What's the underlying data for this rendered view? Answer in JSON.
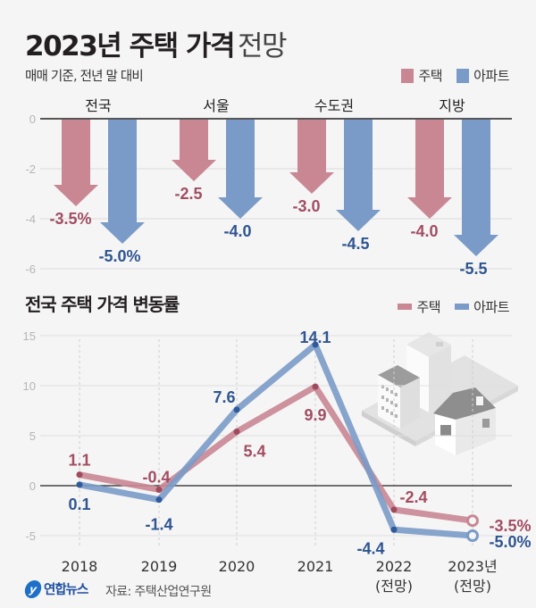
{
  "header": {
    "title_bold": "2023년 주택 가격",
    "title_light": "전망",
    "subtitle": "매매 기준, 전년 말 대비"
  },
  "legend": {
    "house": "주택",
    "apartment": "아파트"
  },
  "colors": {
    "house": "#c98794",
    "apartment": "#7a9bc8",
    "house_label": "#a34d63",
    "apartment_label": "#2f5591"
  },
  "section2": {
    "title": "전국 주택 가격 변동률"
  },
  "footer": {
    "logo_mark": "y",
    "logo_text": "연합뉴스",
    "source": "자료: 주택산업연구원"
  },
  "chart_data": [
    {
      "type": "bar",
      "title": "2023년 주택 가격 전망",
      "subtitle": "매매 기준, 전년 말 대비",
      "categories": [
        "전국",
        "서울",
        "수도권",
        "지방"
      ],
      "series": [
        {
          "name": "주택",
          "values": [
            -3.5,
            -2.5,
            -3.0,
            -4.0
          ],
          "labels": [
            "-3.5%",
            "-2.5",
            "-3.0",
            "-4.0"
          ]
        },
        {
          "name": "아파트",
          "values": [
            -5.0,
            -4.0,
            -4.5,
            -5.5
          ],
          "labels": [
            "-5.0%",
            "-4.0",
            "-4.5",
            "-5.5"
          ]
        }
      ],
      "yticks": [
        0,
        -2,
        -4,
        -6
      ],
      "ylim": [
        -6,
        0
      ],
      "grid": true,
      "legend": "top-right",
      "mark_style": "down-arrow"
    },
    {
      "type": "line",
      "title": "전국 주택 가격 변동률",
      "categories": [
        "2018",
        "2019",
        "2020",
        "2021",
        "2022\n(전망)",
        "2023년\n(전망)"
      ],
      "category_lines": [
        [
          "2018"
        ],
        [
          "2019"
        ],
        [
          "2020"
        ],
        [
          "2021"
        ],
        [
          "2022",
          "(전망)"
        ],
        [
          "2023년",
          "(전망)"
        ]
      ],
      "series": [
        {
          "name": "주택",
          "values": [
            1.1,
            -0.4,
            5.4,
            9.9,
            -2.4,
            -3.5
          ],
          "labels": [
            "1.1",
            "-0.4",
            "5.4",
            "9.9",
            "-2.4",
            "-3.5%"
          ]
        },
        {
          "name": "아파트",
          "values": [
            0.1,
            -1.4,
            7.6,
            14.1,
            -4.4,
            -5.0
          ],
          "labels": [
            "0.1",
            "-1.4",
            "7.6",
            "14.1",
            "-4.4",
            "-5.0%"
          ]
        }
      ],
      "yticks": [
        15,
        10,
        5,
        0,
        -5
      ],
      "ylim": [
        -6,
        16
      ],
      "grid": true,
      "legend": "top-right",
      "forecast_last_point": true
    }
  ]
}
